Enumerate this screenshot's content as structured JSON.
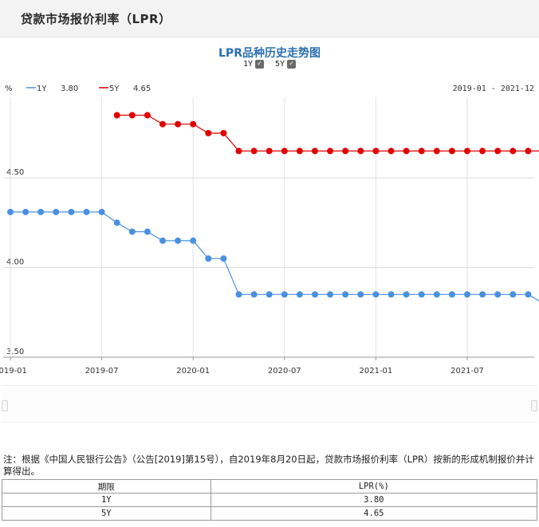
{
  "page": {
    "header_title": "贷款市场报价利率（LPR）"
  },
  "chart_title": "LPR品种历史走势图",
  "toggles": [
    {
      "label": "1Y",
      "checked": true
    },
    {
      "label": "5Y",
      "checked": true
    }
  ],
  "legend": {
    "unit": "%",
    "items": [
      {
        "label": "1Y",
        "value": "3.80",
        "color": "#4a90e2"
      },
      {
        "label": "5Y",
        "value": "4.65",
        "color": "#e00000"
      }
    ]
  },
  "date_range": "2019-01 - 2021-12",
  "chart_data": {
    "type": "line",
    "ylim": [
      3.5,
      4.95
    ],
    "yticks": [
      "4.50",
      "4.00",
      "3.50"
    ],
    "xticks": [
      "2019-01",
      "2019-07",
      "2020-01",
      "2020-07",
      "2021-01",
      "2021-07"
    ],
    "series": [
      {
        "name": "1Y",
        "color": "#4a90e2",
        "points": [
          [
            "2019-01",
            4.31
          ],
          [
            "2019-02",
            4.31
          ],
          [
            "2019-03",
            4.31
          ],
          [
            "2019-04",
            4.31
          ],
          [
            "2019-05",
            4.31
          ],
          [
            "2019-06",
            4.31
          ],
          [
            "2019-07",
            4.31
          ],
          [
            "2019-08",
            4.25
          ],
          [
            "2019-09",
            4.2
          ],
          [
            "2019-10",
            4.2
          ],
          [
            "2019-11",
            4.15
          ],
          [
            "2019-12",
            4.15
          ],
          [
            "2020-01",
            4.15
          ],
          [
            "2020-02",
            4.05
          ],
          [
            "2020-03",
            4.05
          ],
          [
            "2020-04",
            3.85
          ],
          [
            "2020-05",
            3.85
          ],
          [
            "2020-06",
            3.85
          ],
          [
            "2020-07",
            3.85
          ],
          [
            "2020-08",
            3.85
          ],
          [
            "2020-09",
            3.85
          ],
          [
            "2020-10",
            3.85
          ],
          [
            "2020-11",
            3.85
          ],
          [
            "2020-12",
            3.85
          ],
          [
            "2021-01",
            3.85
          ],
          [
            "2021-02",
            3.85
          ],
          [
            "2021-03",
            3.85
          ],
          [
            "2021-04",
            3.85
          ],
          [
            "2021-05",
            3.85
          ],
          [
            "2021-06",
            3.85
          ],
          [
            "2021-07",
            3.85
          ],
          [
            "2021-08",
            3.85
          ],
          [
            "2021-09",
            3.85
          ],
          [
            "2021-10",
            3.85
          ],
          [
            "2021-11",
            3.85
          ],
          [
            "2021-12",
            3.8
          ]
        ]
      },
      {
        "name": "5Y",
        "color": "#e00000",
        "points": [
          [
            "2019-08",
            4.85
          ],
          [
            "2019-09",
            4.85
          ],
          [
            "2019-10",
            4.85
          ],
          [
            "2019-11",
            4.8
          ],
          [
            "2019-12",
            4.8
          ],
          [
            "2020-01",
            4.8
          ],
          [
            "2020-02",
            4.75
          ],
          [
            "2020-03",
            4.75
          ],
          [
            "2020-04",
            4.65
          ],
          [
            "2020-05",
            4.65
          ],
          [
            "2020-06",
            4.65
          ],
          [
            "2020-07",
            4.65
          ],
          [
            "2020-08",
            4.65
          ],
          [
            "2020-09",
            4.65
          ],
          [
            "2020-10",
            4.65
          ],
          [
            "2020-11",
            4.65
          ],
          [
            "2020-12",
            4.65
          ],
          [
            "2021-01",
            4.65
          ],
          [
            "2021-02",
            4.65
          ],
          [
            "2021-03",
            4.65
          ],
          [
            "2021-04",
            4.65
          ],
          [
            "2021-05",
            4.65
          ],
          [
            "2021-06",
            4.65
          ],
          [
            "2021-07",
            4.65
          ],
          [
            "2021-08",
            4.65
          ],
          [
            "2021-09",
            4.65
          ],
          [
            "2021-10",
            4.65
          ],
          [
            "2021-11",
            4.65
          ],
          [
            "2021-12",
            4.65
          ]
        ]
      }
    ]
  },
  "note": "注：根据《中国人民银行公告》（公告[2019]第15号），自2019年8月20日起，贷款市场报价利率（LPR）按新的形成机制报价并计算得出。",
  "table": {
    "headers": [
      "期限",
      "LPR(%)"
    ],
    "rows": [
      [
        "1Y",
        "3.80"
      ],
      [
        "5Y",
        "4.65"
      ]
    ]
  }
}
